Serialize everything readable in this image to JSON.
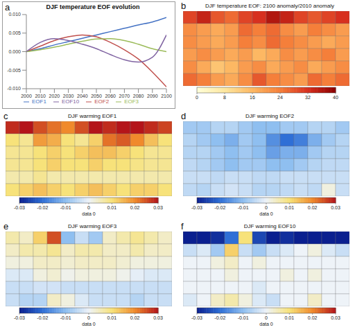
{
  "chart_data": [
    {
      "panel": "a",
      "type": "line",
      "title": "DJF temperature EOF evolution",
      "x": [
        2000,
        2010,
        2020,
        2030,
        2040,
        2050,
        2060,
        2070,
        2080,
        2090,
        2100
      ],
      "xlim": [
        2000,
        2100
      ],
      "xticks": [
        2000,
        2010,
        2020,
        2030,
        2040,
        2050,
        2060,
        2070,
        2080,
        2090,
        2100
      ],
      "ylim": [
        -0.01,
        0.01
      ],
      "yticks": [
        {
          "value": -0.01,
          "label": "-0.010"
        },
        {
          "value": -0.005,
          "label": "-0.005"
        },
        {
          "value": 0,
          "label": "0.000"
        },
        {
          "value": 0.005,
          "label": "0.005"
        },
        {
          "value": 0.01,
          "label": "0.010"
        }
      ],
      "grid": false,
      "legend": "bottom",
      "series": [
        {
          "name": "EOF1",
          "color": "#4472c4",
          "values": [
            0,
            0.0008,
            0.0018,
            0.0027,
            0.0036,
            0.0045,
            0.0054,
            0.0063,
            0.0072,
            0.008,
            0.0092
          ]
        },
        {
          "name": "EOF2",
          "color": "#c0504d",
          "values": [
            0,
            0.0015,
            0.003,
            0.004,
            0.0045,
            0.004,
            0.0025,
            0.0005,
            -0.002,
            -0.0055,
            -0.0095
          ]
        },
        {
          "name": "EOF3",
          "color": "#9bbb59",
          "values": [
            0,
            0.0005,
            0.0012,
            0.002,
            0.0028,
            0.0034,
            0.0035,
            0.003,
            0.002,
            0.0008,
            0
          ]
        },
        {
          "name": "EOF10",
          "color": "#8064a2",
          "values": [
            0,
            0.0025,
            0.0035,
            0.003,
            0.002,
            0.0008,
            -0.0008,
            -0.0022,
            -0.0028,
            -0.0015,
            0.0045
          ]
        }
      ]
    },
    {
      "panel": "b",
      "type": "heatmap",
      "title": "DJF temperature EOF: 2100 anomaly/2010 anomaly",
      "tick_labels": false,
      "cells": [
        [
          30,
          34,
          28,
          26,
          30,
          32,
          36,
          34,
          30,
          28,
          30,
          32
        ],
        [
          22,
          20,
          18,
          20,
          26,
          24,
          26,
          22,
          20,
          24,
          22,
          20
        ],
        [
          22,
          20,
          18,
          20,
          24,
          22,
          26,
          24,
          22,
          20,
          18,
          20
        ],
        [
          20,
          22,
          20,
          18,
          20,
          16,
          18,
          22,
          20,
          22,
          24,
          20
        ],
        [
          22,
          18,
          14,
          16,
          20,
          22,
          18,
          20,
          22,
          18,
          20,
          22
        ],
        [
          26,
          24,
          20,
          18,
          22,
          28,
          24,
          22,
          20,
          26,
          24,
          26
        ]
      ],
      "colorbar": {
        "range": [
          0,
          40
        ],
        "ticks": [
          0,
          8,
          16,
          24,
          32,
          40
        ]
      }
    },
    {
      "panel": "c",
      "type": "heatmap",
      "title": "DJF warming EOF1",
      "tick_labels": false,
      "cells": [
        [
          0.028,
          0.03,
          0.025,
          0.022,
          0.02,
          0.025,
          0.03,
          0.028,
          0.03,
          0.03,
          0.028,
          0.026
        ],
        [
          0.01,
          0.008,
          0.018,
          0.016,
          0.01,
          0.008,
          0.012,
          0.022,
          0.024,
          0.02,
          0.014,
          0.01
        ],
        [
          0.008,
          0.008,
          0.01,
          0.012,
          0.01,
          0.012,
          0.014,
          0.014,
          0.012,
          0.01,
          0.008,
          0.008
        ],
        [
          0.008,
          0.008,
          0.01,
          0.012,
          0.01,
          0.01,
          0.012,
          0.01,
          0.01,
          0.009,
          0.008,
          0.008
        ],
        [
          0.006,
          0.006,
          0.008,
          0.006,
          0.006,
          0.006,
          0.006,
          0.006,
          0.006,
          0.006,
          0.006,
          0.006
        ],
        [
          0.01,
          0.012,
          0.014,
          0.012,
          0.01,
          0.012,
          0.014,
          0.012,
          0.01,
          0.012,
          0.012,
          0.01
        ]
      ],
      "colorbar": {
        "range": [
          -0.03,
          0.03
        ],
        "ticks": [
          -0.03,
          -0.02,
          -0.01,
          0,
          0.01,
          0.02,
          0.03
        ],
        "label": "data 0"
      }
    },
    {
      "panel": "d",
      "type": "heatmap",
      "title": "DJF warming EOF2",
      "tick_labels": false,
      "cells": [
        [
          -0.008,
          -0.008,
          -0.006,
          -0.006,
          -0.008,
          -0.01,
          -0.01,
          -0.008,
          -0.008,
          -0.006,
          -0.006,
          -0.008
        ],
        [
          -0.006,
          -0.008,
          -0.01,
          -0.012,
          -0.008,
          -0.01,
          -0.016,
          -0.02,
          -0.018,
          -0.012,
          -0.008,
          -0.006
        ],
        [
          -0.006,
          -0.006,
          -0.008,
          -0.01,
          -0.008,
          -0.01,
          -0.014,
          -0.012,
          -0.012,
          -0.008,
          -0.006,
          -0.006
        ],
        [
          -0.005,
          -0.006,
          -0.008,
          -0.01,
          -0.008,
          -0.008,
          -0.01,
          -0.01,
          -0.008,
          -0.006,
          -0.005,
          -0.005
        ],
        [
          -0.004,
          -0.004,
          -0.005,
          -0.004,
          -0.004,
          -0.005,
          -0.005,
          -0.004,
          -0.004,
          -0.004,
          -0.004,
          -0.004
        ],
        [
          -0.005,
          -0.006,
          -0.004,
          -0.003,
          -0.004,
          -0.006,
          -0.006,
          -0.005,
          -0.004,
          -0.005,
          0.002,
          -0.004
        ]
      ],
      "colorbar": {
        "range": [
          -0.03,
          0.03
        ],
        "ticks": [
          -0.03,
          -0.02,
          -0.01,
          0,
          0.01,
          0.02,
          0.03
        ],
        "label": "data 0"
      }
    },
    {
      "panel": "e",
      "type": "heatmap",
      "title": "DJF warming EOF3",
      "tick_labels": false,
      "cells": [
        [
          0.006,
          0.004,
          0.012,
          0.025,
          -0.01,
          -0.004,
          -0.008,
          0.004,
          0.006,
          0.008,
          0.006,
          0.004
        ],
        [
          0.004,
          0.006,
          0.006,
          0.008,
          0.004,
          0.006,
          0.006,
          0.004,
          0.004,
          0.006,
          0.004,
          0.004
        ],
        [
          0.002,
          0.002,
          0.004,
          0.004,
          0.003,
          0.004,
          0.004,
          0.004,
          0.003,
          0.002,
          0.002,
          0.002
        ],
        [
          -0.002,
          -0.002,
          0.002,
          0.003,
          0.001,
          0.002,
          0.002,
          0.002,
          0.001,
          -0.001,
          -0.002,
          -0.002
        ],
        [
          -0.004,
          -0.004,
          -0.003,
          -0.003,
          -0.004,
          -0.004,
          -0.004,
          -0.004,
          -0.004,
          -0.004,
          -0.004,
          -0.004
        ],
        [
          -0.004,
          -0.006,
          -0.006,
          0.004,
          0.002,
          -0.002,
          -0.004,
          -0.004,
          -0.004,
          -0.006,
          -0.004,
          -0.004
        ]
      ],
      "colorbar": {
        "range": [
          -0.03,
          0.03
        ],
        "ticks": [
          -0.03,
          -0.02,
          -0.01,
          0,
          0.01,
          0.02,
          0.03
        ],
        "label": "data 0"
      }
    },
    {
      "panel": "f",
      "type": "heatmap",
      "title": "DJF warming EOF10",
      "tick_labels": false,
      "cells": [
        [
          -0.03,
          -0.03,
          -0.028,
          -0.02,
          0.01,
          -0.025,
          -0.03,
          -0.028,
          -0.03,
          -0.03,
          -0.03,
          -0.03
        ],
        [
          -0.004,
          -0.002,
          -0.008,
          0.012,
          -0.004,
          -0.008,
          -0.004,
          -0.002,
          0,
          0.002,
          -0.002,
          -0.004
        ],
        [
          0,
          0,
          0.002,
          0.004,
          0,
          0.002,
          0,
          0,
          0,
          0,
          0,
          0
        ],
        [
          0,
          0,
          0,
          0.002,
          0,
          0,
          0,
          0.002,
          0,
          0.002,
          0,
          0
        ],
        [
          0,
          0,
          0,
          0,
          0,
          -0.002,
          0,
          0,
          0,
          0,
          0,
          0
        ],
        [
          -0.002,
          0,
          0.004,
          0.006,
          0.002,
          -0.002,
          -0.004,
          0,
          0,
          0.004,
          0,
          0
        ]
      ],
      "colorbar": {
        "range": [
          -0.03,
          0.03
        ],
        "ticks": [
          -0.03,
          -0.02,
          -0.01,
          0,
          0.01,
          0.02,
          0.03
        ],
        "label": "data 0"
      }
    }
  ]
}
